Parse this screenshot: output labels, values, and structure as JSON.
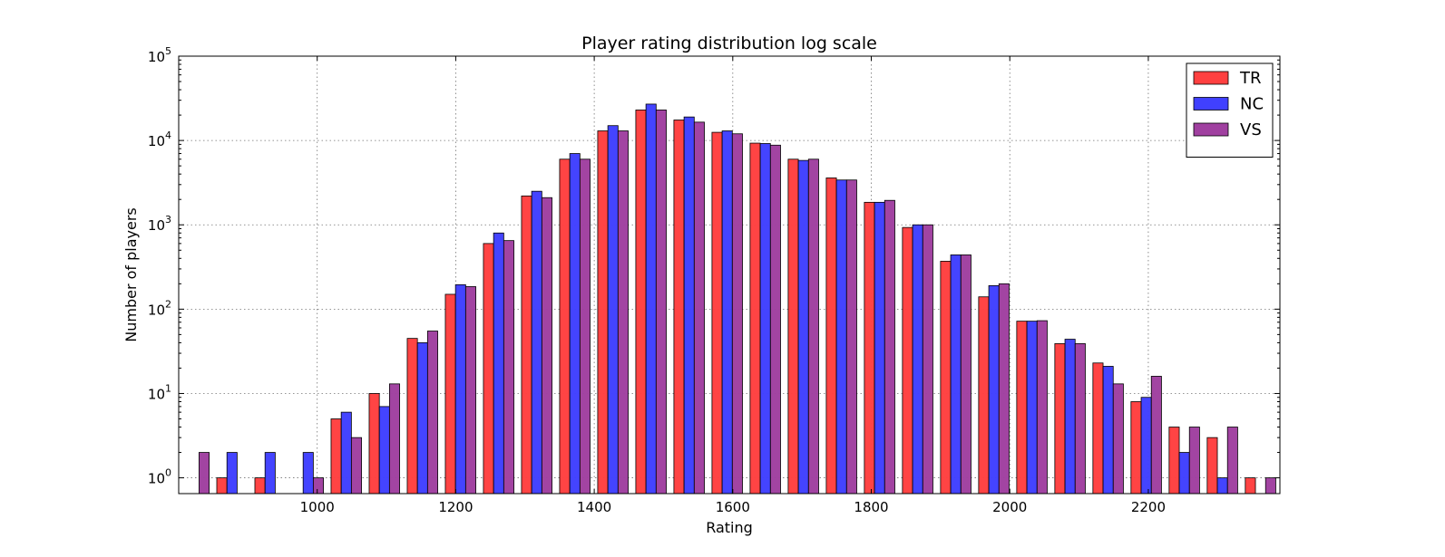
{
  "chart_data": {
    "type": "bar",
    "title": "Player rating distribution log scale",
    "xlabel": "Rating",
    "ylabel": "Number of players",
    "yscale": "log",
    "ylim": [
      0.65,
      100000
    ],
    "xlim": [
      800,
      2390
    ],
    "bin_start": 800,
    "bin_width": 55,
    "x_ticks": [
      1000,
      1200,
      1400,
      1600,
      1800,
      2000,
      2200
    ],
    "y_ticks": [
      {
        "base": "10",
        "exp": "0",
        "value": 1
      },
      {
        "base": "10",
        "exp": "1",
        "value": 10
      },
      {
        "base": "10",
        "exp": "2",
        "value": 100
      },
      {
        "base": "10",
        "exp": "3",
        "value": 1000
      },
      {
        "base": "10",
        "exp": "4",
        "value": 10000
      },
      {
        "base": "10",
        "exp": "5",
        "value": 100000
      }
    ],
    "grid": true,
    "legend_position": "top-right",
    "series": [
      {
        "name": "TR",
        "color": "#ff4040",
        "values": [
          0,
          1,
          1,
          0,
          5,
          10,
          45,
          150,
          600,
          2200,
          6000,
          13000,
          23000,
          17500,
          12500,
          9300,
          6000,
          3600,
          1850,
          930,
          370,
          140,
          72,
          39,
          23,
          8,
          4,
          3,
          1
        ]
      },
      {
        "name": "NC",
        "color": "#4040ff",
        "values": [
          0,
          2,
          2,
          2,
          6,
          7,
          40,
          195,
          800,
          2500,
          7000,
          15000,
          27000,
          19000,
          13000,
          9200,
          5800,
          3400,
          1850,
          1000,
          440,
          190,
          72,
          44,
          21,
          9,
          2,
          1,
          0
        ]
      },
      {
        "name": "VS",
        "color": "#a040a0",
        "values": [
          2,
          0,
          0,
          1,
          3,
          13,
          55,
          185,
          650,
          2100,
          6000,
          13000,
          23000,
          16500,
          12000,
          8800,
          6000,
          3400,
          1950,
          1000,
          440,
          200,
          73,
          39,
          13,
          16,
          4,
          4,
          1
        ]
      }
    ]
  }
}
